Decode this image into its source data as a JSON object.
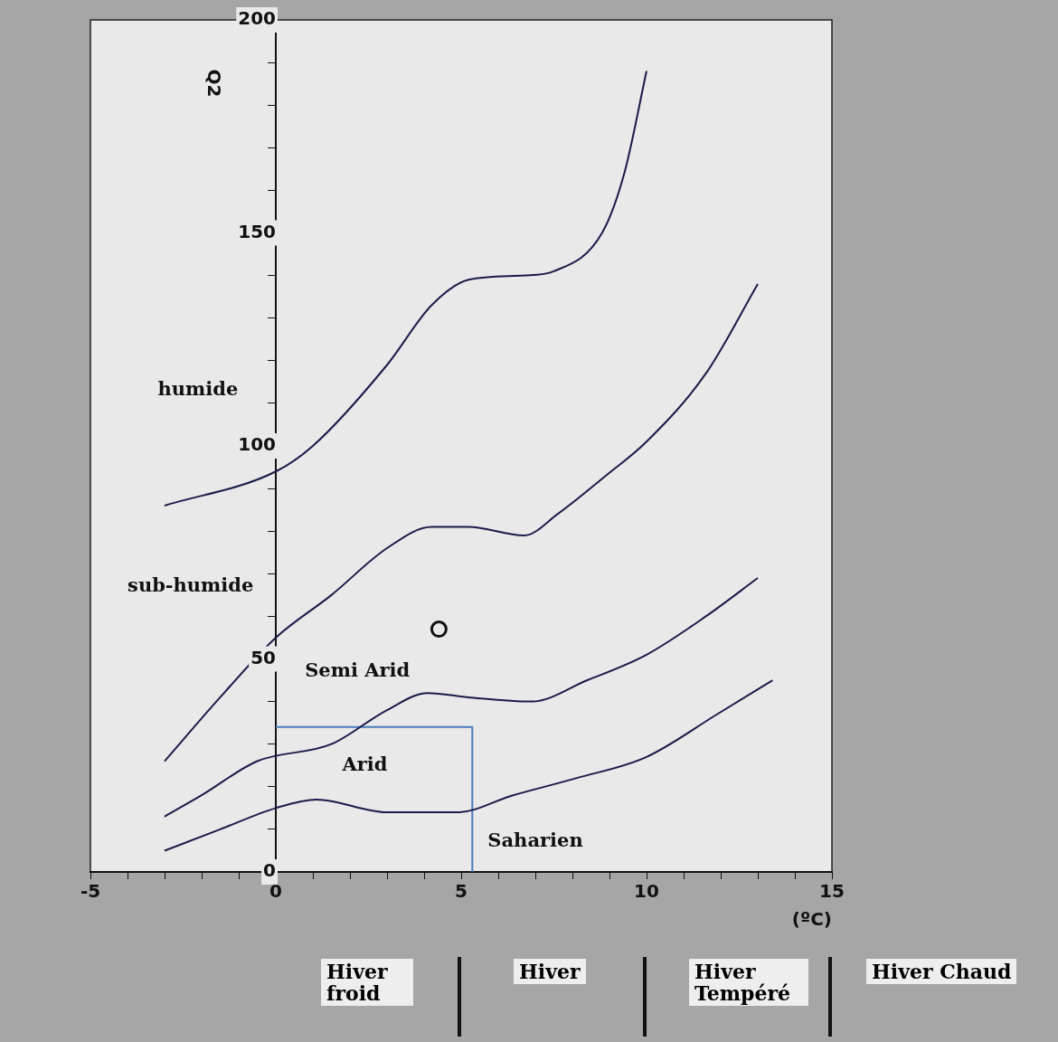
{
  "chart_data": {
    "type": "line",
    "xlabel": "(ºC)",
    "ylabel": "Q2",
    "xlim": [
      -5,
      15
    ],
    "ylim": [
      0,
      200
    ],
    "xticks": [
      -5,
      {
        "value": -4,
        "label": null
      },
      {
        "value": -3,
        "label": null
      },
      {
        "value": -2,
        "label": null
      },
      {
        "value": -1,
        "label": null
      },
      0,
      {
        "value": 1,
        "label": null
      },
      {
        "value": 2,
        "label": null
      },
      {
        "value": 3,
        "label": null
      },
      {
        "value": 4,
        "label": null
      },
      5,
      {
        "value": 6,
        "label": null
      },
      {
        "value": 7,
        "label": null
      },
      {
        "value": 8,
        "label": null
      },
      {
        "value": 9,
        "label": null
      },
      10,
      {
        "value": 11,
        "label": null
      },
      {
        "value": 12,
        "label": null
      },
      {
        "value": 13,
        "label": null
      },
      {
        "value": 14,
        "label": null
      },
      15
    ],
    "yticks": [
      0,
      {
        "value": 10,
        "label": null
      },
      {
        "value": 20,
        "label": null
      },
      {
        "value": 30,
        "label": null
      },
      {
        "value": 40,
        "label": null
      },
      50,
      {
        "value": 60,
        "label": null
      },
      {
        "value": 70,
        "label": null
      },
      {
        "value": 80,
        "label": null
      },
      {
        "value": 90,
        "label": null
      },
      100,
      {
        "value": 110,
        "label": null
      },
      {
        "value": 120,
        "label": null
      },
      {
        "value": 130,
        "label": null
      },
      {
        "value": 140,
        "label": null
      },
      150,
      {
        "value": 160,
        "label": null
      },
      {
        "value": 170,
        "label": null
      },
      {
        "value": 180,
        "label": null
      },
      {
        "value": 190,
        "label": null
      },
      200
    ],
    "grid": false,
    "legend": false,
    "marker": "none",
    "series": [
      {
        "color": "#1a1a4a",
        "x": [
          -3,
          0,
          1,
          3,
          4.2,
          5.2,
          6.7,
          7.5,
          8.8,
          9.4,
          10
        ],
        "values": [
          86,
          94,
          100,
          119,
          133,
          139,
          140,
          141,
          150,
          164,
          188
        ]
      },
      {
        "color": "#1a1a4a",
        "x": [
          -3,
          -1.5,
          0,
          1.5,
          3,
          4.2,
          5.2,
          6.7,
          7.6,
          8.9,
          10,
          11.6,
          13
        ],
        "values": [
          26,
          41,
          55,
          65,
          76,
          81,
          81,
          79,
          84,
          93,
          101,
          117,
          138
        ]
      },
      {
        "color": "#1a1a4a",
        "x": [
          -3,
          -2,
          -0.5,
          1.5,
          3,
          4.1,
          5.2,
          6.9,
          8.4,
          10,
          11.6,
          13
        ],
        "values": [
          13,
          18,
          26,
          30,
          38,
          42,
          41,
          40,
          45,
          51,
          60,
          69
        ]
      },
      {
        "color": "#1a1a4a",
        "x": [
          -3,
          -1.5,
          0,
          1.1,
          3,
          4.9,
          6.4,
          8.1,
          10,
          11.9,
          13.4
        ],
        "values": [
          5,
          10,
          15,
          17,
          14,
          14,
          18,
          22,
          27,
          37,
          45
        ]
      },
      {
        "color": "#4a7cc0",
        "x": [
          0,
          5.3,
          5.3
        ],
        "values": [
          34,
          34,
          0
        ]
      },
      {
        "type": "scatter",
        "marker": "circle",
        "color": "#111111",
        "x": [
          4.4
        ],
        "values": [
          57
        ]
      }
    ],
    "annotations": [
      "humide",
      "sub-humide",
      "Semi Arid",
      "Arid",
      "Saharien",
      "Hiver froid",
      "Hiver",
      "Hiver Tempéré",
      "Hiver Chaud"
    ]
  }
}
